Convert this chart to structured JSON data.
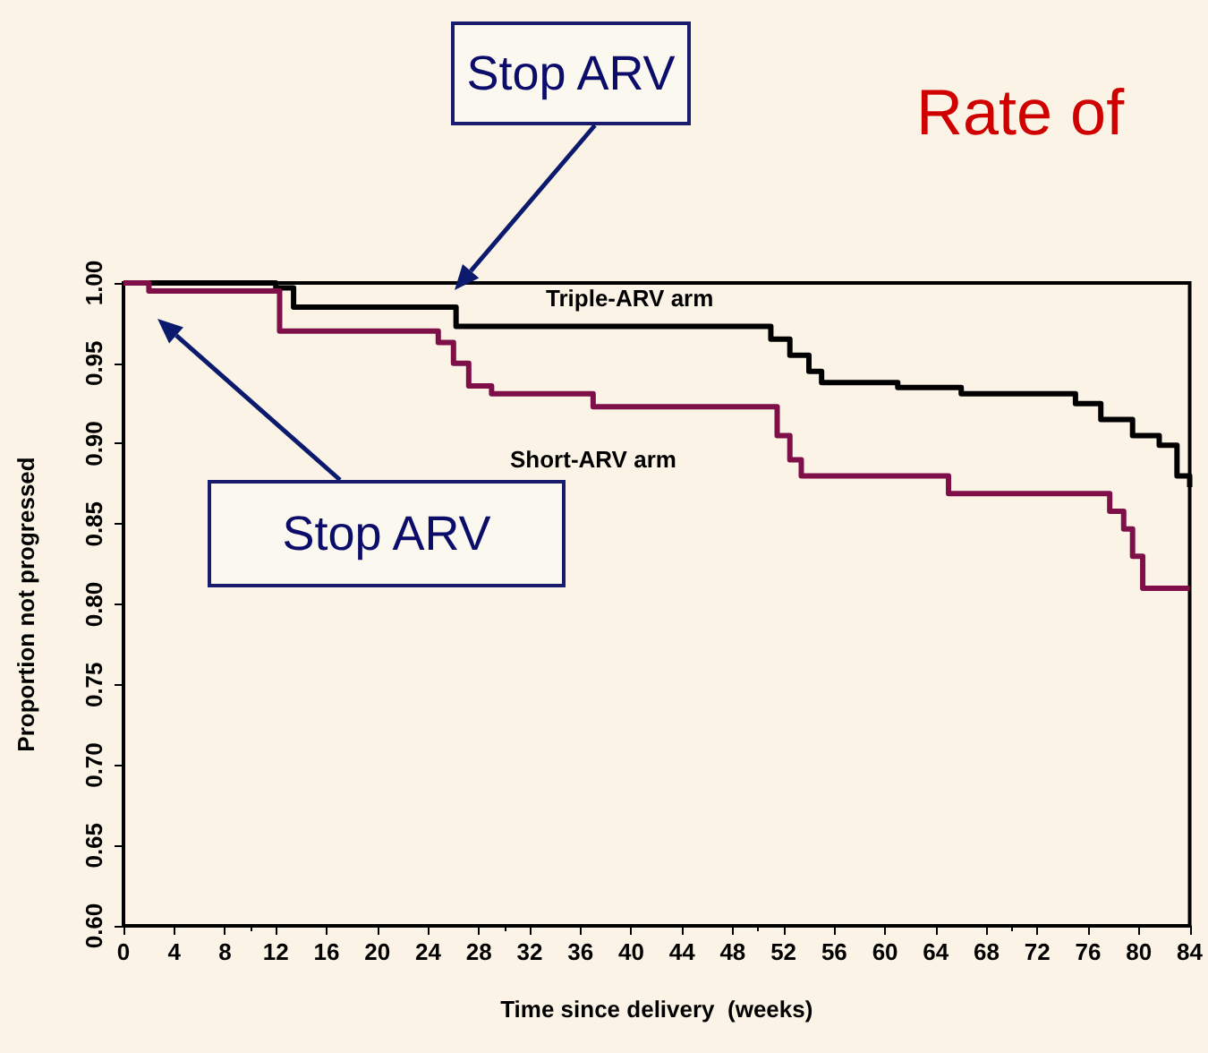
{
  "chart_data": {
    "type": "step",
    "title": "Rate of",
    "xlabel": "Time since delivery  (weeks)",
    "ylabel": "Proportion not progressed",
    "xlim": [
      0,
      84
    ],
    "xticks": [
      0,
      4,
      8,
      12,
      16,
      20,
      24,
      28,
      32,
      36,
      40,
      44,
      48,
      52,
      56,
      60,
      64,
      68,
      72,
      76,
      80,
      84
    ],
    "ylim": [
      0.6,
      1.0
    ],
    "yticks": [
      {
        "value": 0.6,
        "label": "0.60"
      },
      {
        "value": 0.65,
        "label": "0.65"
      },
      {
        "value": 0.7,
        "label": "0.70"
      },
      {
        "value": 0.75,
        "label": "0.75"
      },
      {
        "value": 0.8,
        "label": "0.80"
      },
      {
        "value": 0.85,
        "label": "0.85"
      },
      {
        "value": 0.9,
        "label": "0.90"
      },
      {
        "value": 0.95,
        "label": "0.95"
      },
      {
        "value": 1.0,
        "label": "1.00"
      }
    ],
    "grid": false,
    "legend": false,
    "series": [
      {
        "name": "Triple-ARV arm",
        "color": "#000000",
        "x": [
          0,
          12,
          13.4,
          26.2,
          51,
          52.5,
          54,
          55,
          61,
          66,
          75,
          77,
          79.5,
          81.6,
          83,
          84
        ],
        "values": [
          1.0,
          0.997,
          0.985,
          0.973,
          0.965,
          0.955,
          0.945,
          0.938,
          0.935,
          0.931,
          0.925,
          0.915,
          0.905,
          0.899,
          0.88,
          0.873
        ]
      },
      {
        "name": "Short-ARV arm",
        "color": "#7f0f48",
        "x": [
          0,
          2,
          12.3,
          24.8,
          26,
          27.2,
          29,
          37,
          50.6,
          51.5,
          52.5,
          53.4,
          65,
          74.3,
          77.7,
          78.8,
          79.5,
          80.3,
          84
        ],
        "values": [
          1.0,
          0.995,
          0.97,
          0.963,
          0.95,
          0.936,
          0.931,
          0.923,
          0.923,
          0.905,
          0.89,
          0.88,
          0.869,
          0.869,
          0.858,
          0.847,
          0.83,
          0.81,
          0.81
        ]
      }
    ],
    "annotations": [
      "Stop ARV",
      "Stop ARV"
    ]
  }
}
